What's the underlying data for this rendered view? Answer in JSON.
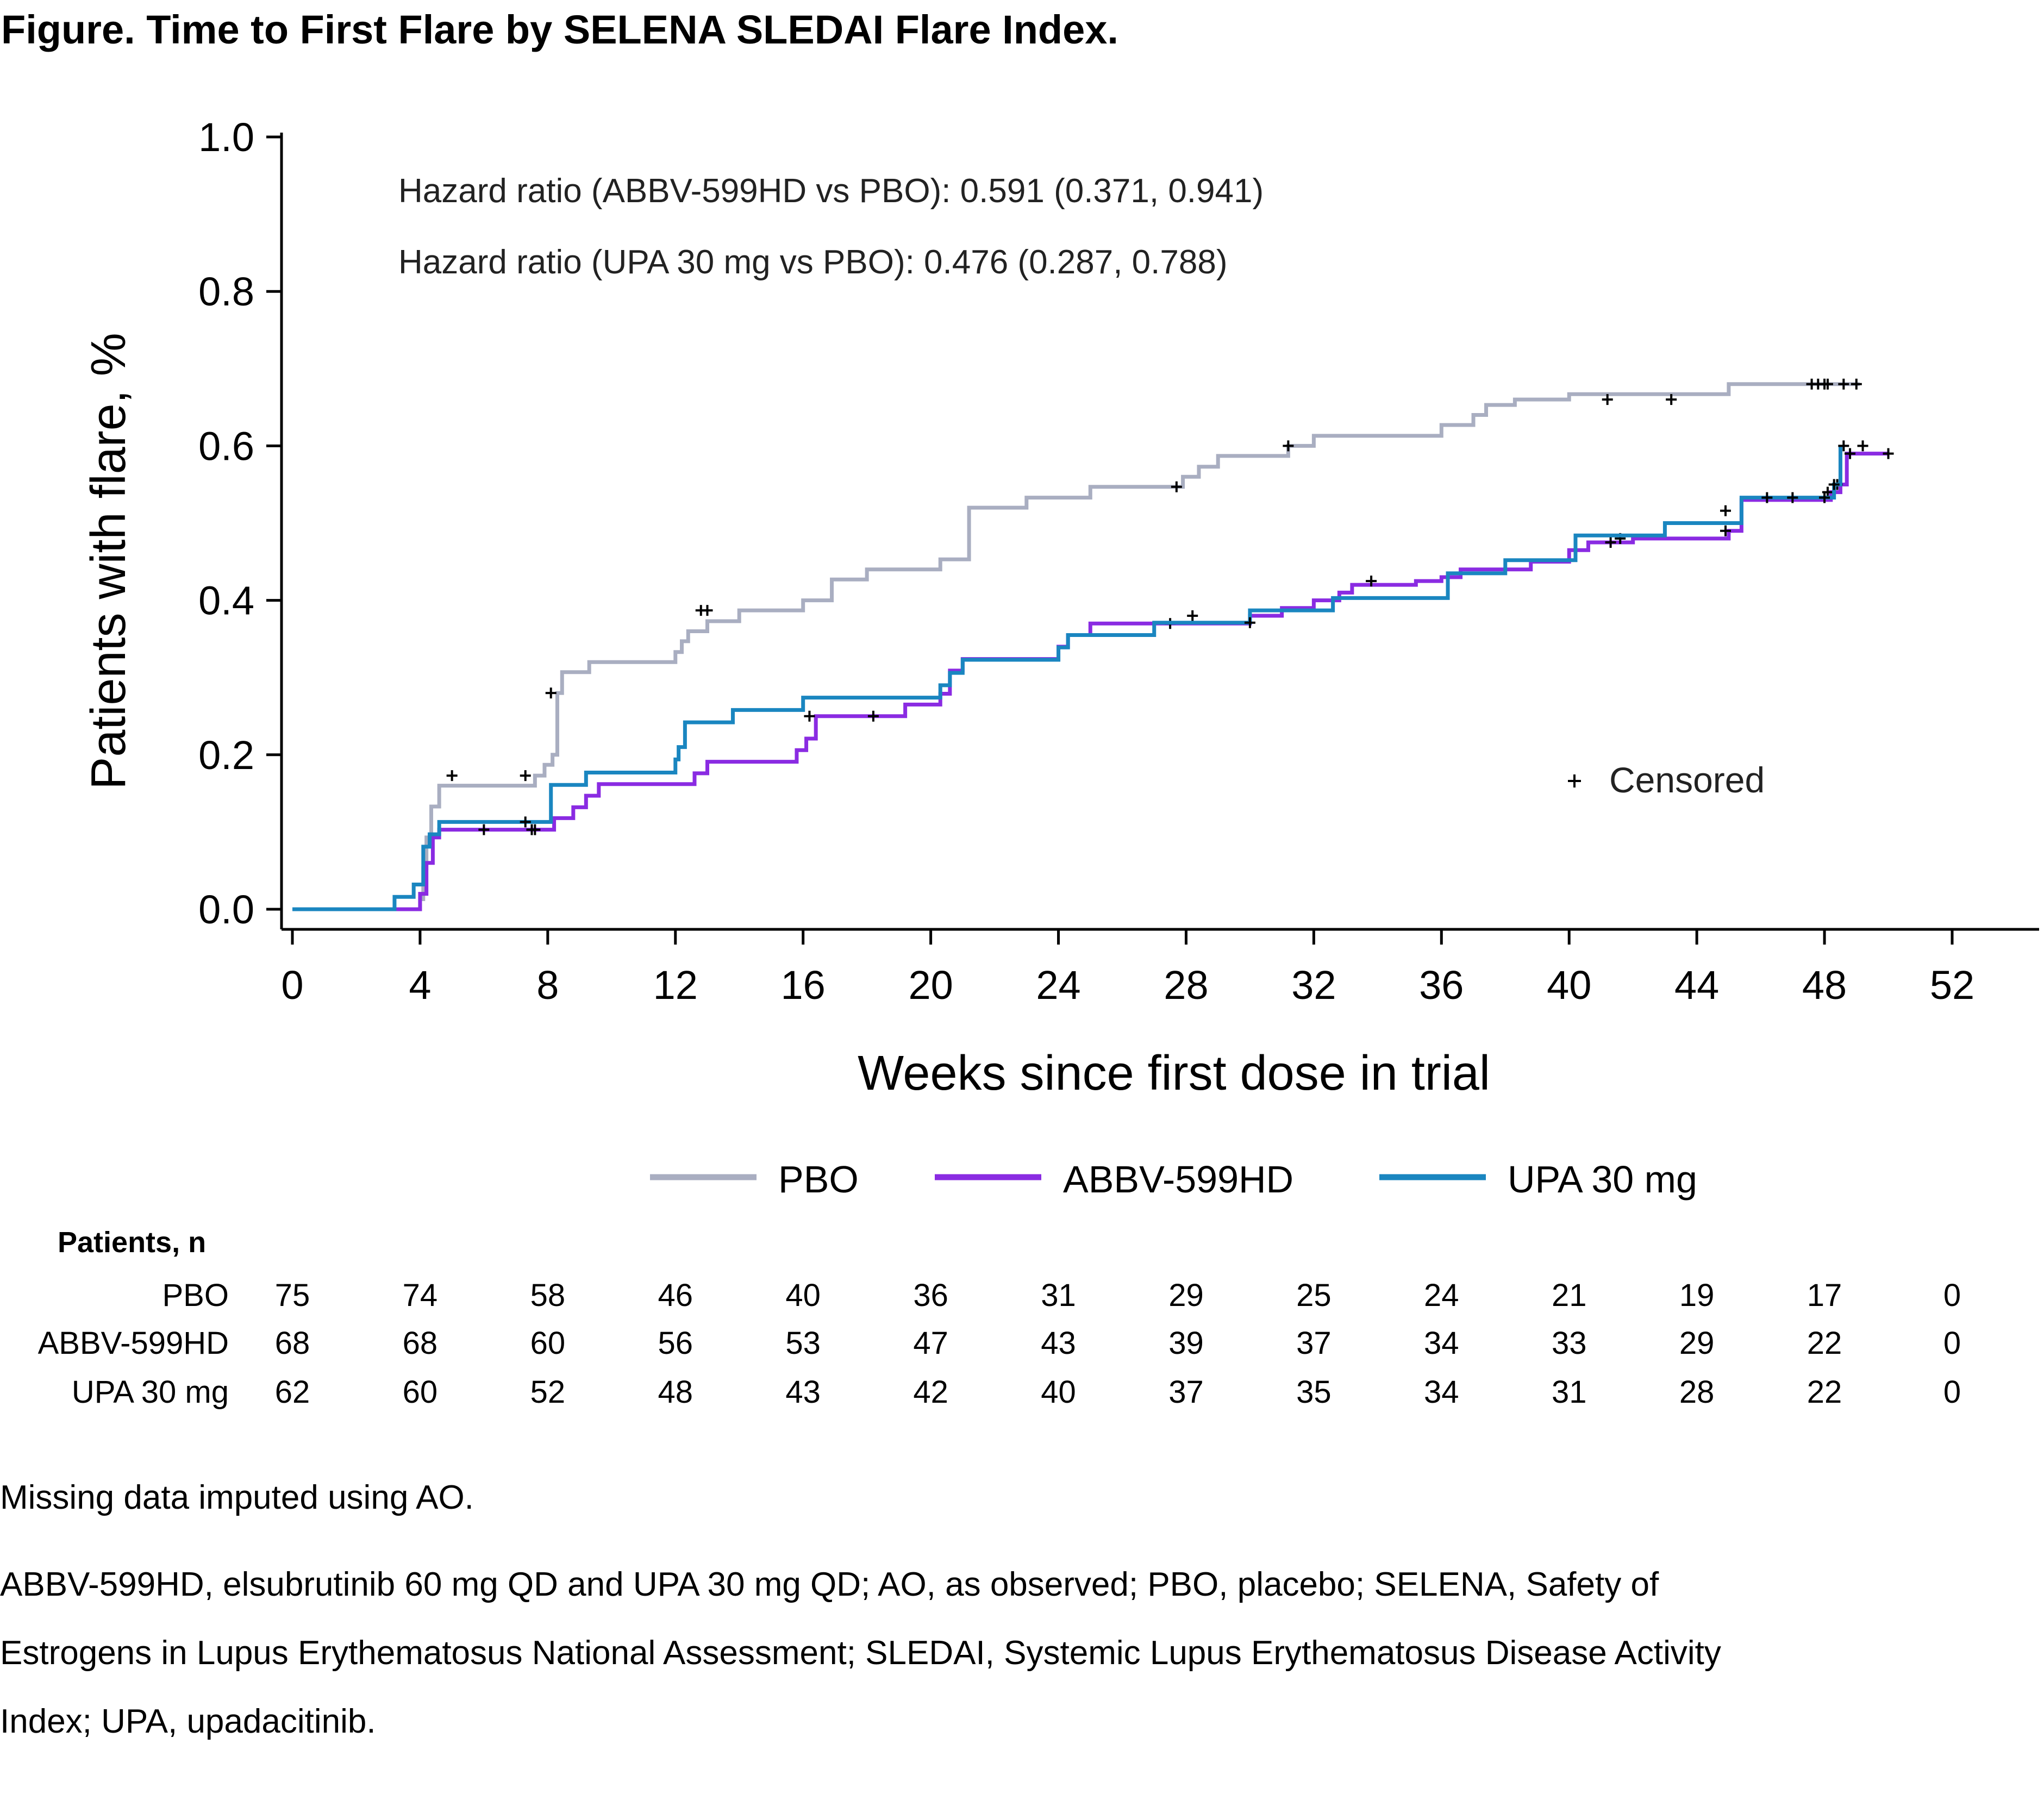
{
  "title": "Figure. Time to First Flare by SELENA SLEDAI Flare Index.",
  "chart_data": {
    "type": "line",
    "step": true,
    "title": "",
    "xlabel": "Weeks since first dose in trial",
    "ylabel": "Patients with flare, %",
    "xlim": [
      0,
      52
    ],
    "ylim": [
      0,
      1.0
    ],
    "xticks": [
      0,
      4,
      8,
      12,
      16,
      20,
      24,
      28,
      32,
      36,
      40,
      44,
      48,
      52
    ],
    "xtick_labels": [
      "0",
      "4",
      "8",
      "12",
      "16",
      "20",
      "24",
      "28",
      "32",
      "36",
      "40",
      "44",
      "48",
      "52"
    ],
    "yticks": [
      0.0,
      0.2,
      0.4,
      0.6,
      0.8,
      1.0
    ],
    "ytick_labels": [
      "0.0",
      "0.2",
      "0.4",
      "0.6",
      "0.8",
      "1.0"
    ],
    "grid": false,
    "legend_position": "bottom",
    "annotations": [
      "Hazard ratio (ABBV-599HD vs PBO): 0.591 (0.371, 0.941)",
      "Hazard ratio (UPA 30 mg vs PBO): 0.476 (0.287, 0.788)"
    ],
    "censor_legend_label": "Censored",
    "series": [
      {
        "name": "PBO",
        "color": "#a9aec1",
        "x": [
          0,
          4.0,
          4.1,
          4.2,
          4.35,
          4.6,
          7.6,
          7.9,
          8.15,
          8.3,
          8.45,
          9.3,
          12.0,
          12.2,
          12.4,
          13.0,
          14.0,
          16.0,
          16.9,
          17.4,
          18.0,
          20.3,
          21.2,
          23.0,
          24.2,
          25.0,
          27.6,
          27.9,
          28.4,
          29.0,
          31.2,
          32.0,
          35.8,
          36.0,
          36.2,
          37.0,
          37.4,
          38.0,
          38.3,
          39.0,
          39.8,
          40.0,
          44.6,
          45.0,
          48.5,
          49.1
        ],
        "y": [
          0,
          0.013,
          0.053,
          0.093,
          0.133,
          0.16,
          0.173,
          0.187,
          0.2,
          0.28,
          0.307,
          0.32,
          0.333,
          0.347,
          0.36,
          0.373,
          0.387,
          0.4,
          0.427,
          0.427,
          0.44,
          0.453,
          0.52,
          0.533,
          0.533,
          0.547,
          0.547,
          0.56,
          0.573,
          0.587,
          0.6,
          0.613,
          0.613,
          0.627,
          0.627,
          0.64,
          0.653,
          0.653,
          0.66,
          0.66,
          0.66,
          0.667,
          0.667,
          0.68,
          0.68,
          0.68
        ],
        "censored_x": [
          5.0,
          7.3,
          8.1,
          12.8,
          13.0,
          27.7,
          31.2,
          41.2,
          43.2,
          47.6,
          47.8,
          48.0,
          48.1,
          48.6,
          49.0
        ],
        "censored_y": [
          0.173,
          0.173,
          0.28,
          0.387,
          0.387,
          0.547,
          0.6,
          0.66,
          0.66,
          0.68,
          0.68,
          0.68,
          0.68,
          0.68,
          0.68
        ]
      },
      {
        "name": "ABBV-599HD",
        "color": "#8a2be2",
        "x": [
          0,
          4.0,
          4.2,
          4.4,
          4.6,
          7.9,
          8.2,
          8.8,
          9.2,
          9.6,
          12.0,
          12.6,
          13.0,
          14.0,
          15.8,
          16.1,
          16.4,
          18.4,
          19.2,
          20.3,
          20.6,
          21.0,
          24.0,
          24.3,
          25.0,
          30.0,
          31.0,
          32.0,
          32.8,
          33.2,
          35.2,
          36.0,
          36.6,
          38.8,
          40.0,
          40.6,
          42.0,
          45.0,
          45.4,
          48.2,
          48.5,
          48.7,
          50.0
        ],
        "y": [
          0,
          0.02,
          0.06,
          0.093,
          0.103,
          0.103,
          0.118,
          0.132,
          0.147,
          0.162,
          0.162,
          0.176,
          0.191,
          0.191,
          0.206,
          0.221,
          0.25,
          0.25,
          0.265,
          0.279,
          0.309,
          0.324,
          0.34,
          0.355,
          0.37,
          0.38,
          0.39,
          0.4,
          0.41,
          0.42,
          0.425,
          0.43,
          0.44,
          0.45,
          0.465,
          0.475,
          0.48,
          0.49,
          0.53,
          0.54,
          0.55,
          0.59,
          0.59
        ],
        "censored_x": [
          6.0,
          7.5,
          7.6,
          16.2,
          18.2,
          27.5,
          28.2,
          33.8,
          41.3,
          41.6,
          44.9,
          48.1,
          48.4,
          48.8,
          50.0
        ],
        "censored_y": [
          0.103,
          0.103,
          0.103,
          0.25,
          0.25,
          0.37,
          0.38,
          0.425,
          0.475,
          0.48,
          0.49,
          0.54,
          0.55,
          0.59,
          0.59
        ]
      },
      {
        "name": "UPA 30 mg",
        "color": "#1a86c0",
        "x": [
          0,
          3.2,
          3.8,
          4.1,
          4.3,
          4.6,
          7.9,
          8.1,
          9.2,
          12.0,
          12.1,
          12.3,
          13.8,
          16.0,
          20.3,
          20.6,
          21.0,
          24.0,
          24.3,
          24.6,
          26.0,
          27.0,
          30.0,
          30.5,
          32.6,
          33.0,
          36.2,
          38.0,
          40.2,
          43.0,
          44.4,
          45.4,
          47.5,
          48.3,
          48.5
        ],
        "y": [
          0,
          0.016,
          0.032,
          0.081,
          0.097,
          0.113,
          0.113,
          0.161,
          0.177,
          0.194,
          0.21,
          0.242,
          0.258,
          0.274,
          0.29,
          0.306,
          0.323,
          0.339,
          0.355,
          0.355,
          0.355,
          0.371,
          0.387,
          0.387,
          0.403,
          0.403,
          0.435,
          0.452,
          0.484,
          0.5,
          0.5,
          0.533,
          0.533,
          0.55,
          0.6
        ],
        "censored_x": [
          7.3,
          30.0,
          44.9,
          46.2,
          47.0,
          48.0,
          48.3,
          48.6,
          49.2
        ],
        "censored_y": [
          0.113,
          0.371,
          0.516,
          0.533,
          0.533,
          0.533,
          0.55,
          0.6,
          0.6
        ]
      }
    ]
  },
  "risk_table": {
    "heading": "Patients, n",
    "weeks": [
      "0",
      "4",
      "8",
      "12",
      "16",
      "20",
      "24",
      "28",
      "32",
      "36",
      "40",
      "44",
      "48",
      "52"
    ],
    "rows": [
      {
        "name": "PBO",
        "values": [
          "75",
          "74",
          "58",
          "46",
          "40",
          "36",
          "31",
          "29",
          "25",
          "24",
          "21",
          "19",
          "17",
          "0"
        ]
      },
      {
        "name": "ABBV-599HD",
        "values": [
          "68",
          "68",
          "60",
          "56",
          "53",
          "47",
          "43",
          "39",
          "37",
          "34",
          "33",
          "29",
          "22",
          "0"
        ]
      },
      {
        "name": "UPA 30 mg",
        "values": [
          "62",
          "60",
          "52",
          "48",
          "43",
          "42",
          "40",
          "37",
          "35",
          "34",
          "31",
          "28",
          "22",
          "0"
        ]
      }
    ]
  },
  "footnotes": {
    "line1": "Missing data imputed using AO.",
    "line2a": "ABBV-599HD, elsubrutinib 60 mg QD and UPA 30 mg QD; AO, as observed; PBO, placebo; SELENA, Safety of",
    "line2b": "Estrogens in Lupus Erythematosus National Assessment; SLEDAI, Systemic Lupus Erythematosus Disease Activity",
    "line2c": "Index; UPA, upadacitinib."
  }
}
